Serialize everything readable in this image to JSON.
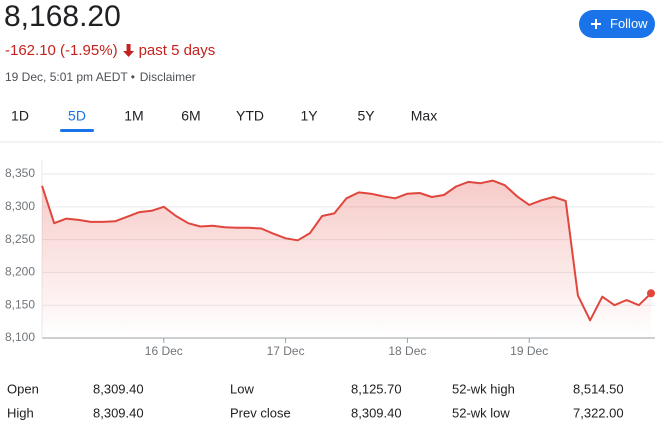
{
  "header": {
    "price": "8,168.20",
    "change": "-162.10 (-1.95%)",
    "change_period": "past 5 days",
    "timestamp": "19 Dec, 5:01 pm AEDT",
    "disclaimer": "Disclaimer"
  },
  "follow_button": "Follow",
  "tabs": [
    "1D",
    "5D",
    "1M",
    "6M",
    "YTD",
    "1Y",
    "5Y",
    "Max"
  ],
  "selected_tab": 1,
  "chart_data": {
    "type": "line",
    "color": "#e0463c",
    "grid": true,
    "categories": [
      null,
      null,
      null,
      null,
      null,
      null,
      null,
      null,
      null,
      null,
      "16 Dec",
      null,
      null,
      null,
      null,
      null,
      null,
      null,
      null,
      null,
      "17 Dec",
      null,
      null,
      null,
      null,
      null,
      null,
      null,
      null,
      null,
      "18 Dec",
      null,
      null,
      null,
      null,
      null,
      null,
      null,
      null,
      null,
      "19 Dec",
      null,
      null,
      null,
      null,
      null,
      null,
      null,
      null,
      null,
      null
    ],
    "values": [
      8332,
      8275,
      8282,
      8280,
      8277,
      8277,
      8278,
      8285,
      8292,
      8294,
      8300,
      8286,
      8275,
      8270,
      8271,
      8269,
      8268,
      8268,
      8267,
      8259,
      8252,
      8249,
      8260,
      8286,
      8290,
      8313,
      8322,
      8320,
      8316,
      8313,
      8320,
      8321,
      8315,
      8318,
      8331,
      8338,
      8336,
      8340,
      8333,
      8316,
      8303,
      8310,
      8315,
      8309,
      8165,
      8127,
      8163,
      8150,
      8158,
      8150,
      8168.2
    ],
    "ylim": [
      8100,
      8372
    ],
    "yticks": [
      {
        "value": 8100,
        "label": "8,100"
      },
      {
        "value": 8150,
        "label": "8,150"
      },
      {
        "value": 8200,
        "label": "8,200"
      },
      {
        "value": 8250,
        "label": "8,250"
      },
      {
        "value": 8300,
        "label": "8,300"
      },
      {
        "value": 8350,
        "label": "8,350"
      }
    ]
  },
  "stats": [
    [
      {
        "label": "Open",
        "value": "8,309.40"
      },
      {
        "label": "Low",
        "value": "8,125.70"
      },
      {
        "label": "52-wk high",
        "value": "8,514.50"
      }
    ],
    [
      {
        "label": "High",
        "value": "8,309.40"
      },
      {
        "label": "Prev close",
        "value": "8,309.40"
      },
      {
        "label": "52-wk low",
        "value": "7,322.00"
      }
    ]
  ]
}
